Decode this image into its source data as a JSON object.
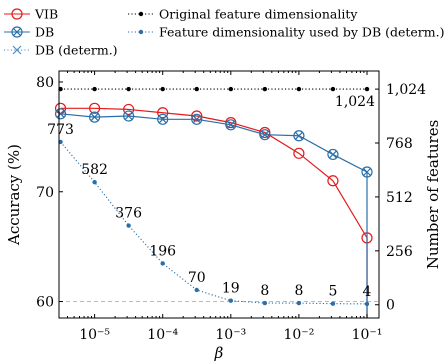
{
  "chart_data": {
    "type": "line",
    "xlabel": "β",
    "ylabel_left": "Accuracy (%)",
    "ylabel_right": "Number of features",
    "xscale": "log",
    "xlim": [
      3e-06,
      0.15
    ],
    "ylim_left": [
      58.5,
      81
    ],
    "ylim_right": [
      -63,
      1110
    ],
    "x_ticks": [
      {
        "v": 1e-05,
        "label": "10⁻⁵"
      },
      {
        "v": 0.0001,
        "label": "10⁻⁴"
      },
      {
        "v": 0.001,
        "label": "10⁻³"
      },
      {
        "v": 0.01,
        "label": "10⁻²"
      },
      {
        "v": 0.1,
        "label": "10⁻¹"
      }
    ],
    "y_ticks_left": [
      60,
      70,
      80
    ],
    "y_ticks_right": [
      {
        "v": 0,
        "label": "0"
      },
      {
        "v": 256,
        "label": "256"
      },
      {
        "v": 512,
        "label": "512"
      },
      {
        "v": 768,
        "label": "768"
      },
      {
        "v": 1024,
        "label": "1,024"
      }
    ],
    "legend": {
      "placement": "top",
      "entries": [
        {
          "name": "VIB",
          "marker": "circle",
          "color": "#e41a1c"
        },
        {
          "name": "DB",
          "marker": "circle-x",
          "color": "#2b6fa8"
        },
        {
          "name": "DB (determ.)",
          "marker": "x",
          "color": "#4a90c8"
        },
        {
          "name": "Original feature dimensionality",
          "marker": "dot",
          "color": "#000000"
        },
        {
          "name": "Feature dimensionality used by DB (determ.)",
          "marker": "dot",
          "color": "#2b6fa8"
        }
      ]
    },
    "series": [
      {
        "name": "VIB",
        "axis": "left",
        "color": "#e41a1c",
        "marker": "circle",
        "x": [
          3.16e-06,
          1e-05,
          3.16e-05,
          0.0001,
          0.000316,
          0.001,
          0.00316,
          0.01,
          0.0316,
          0.1
        ],
        "y": [
          77.6,
          77.6,
          77.5,
          77.2,
          76.9,
          76.3,
          75.4,
          73.5,
          71.0,
          65.8
        ],
        "drop_to": 58.5
      },
      {
        "name": "DB",
        "axis": "left",
        "color": "#2b6fa8",
        "marker": "circle-x",
        "x": [
          3.16e-06,
          1e-05,
          3.16e-05,
          0.0001,
          0.000316,
          0.001,
          0.00316,
          0.01,
          0.0316,
          0.1
        ],
        "y": [
          77.1,
          76.8,
          76.9,
          76.6,
          76.6,
          76.1,
          75.2,
          75.1,
          73.4,
          71.8
        ],
        "drop_to": 58.5
      },
      {
        "name": "Original feature dimensionality",
        "axis": "right",
        "color": "#000000",
        "marker": "dot",
        "style": "dotted",
        "x": [
          3.16e-06,
          1e-05,
          3.16e-05,
          0.0001,
          0.000316,
          0.001,
          0.00316,
          0.01,
          0.0316,
          0.1
        ],
        "y": [
          1024,
          1024,
          1024,
          1024,
          1024,
          1024,
          1024,
          1024,
          1024,
          1024
        ]
      },
      {
        "name": "Feature dimensionality used by DB (determ.)",
        "axis": "right",
        "color": "#2b6fa8",
        "marker": "dot",
        "style": "dotted",
        "x": [
          3.16e-06,
          1e-05,
          3.16e-05,
          0.0001,
          0.000316,
          0.001,
          0.00316,
          0.01,
          0.0316,
          0.1
        ],
        "y": [
          773,
          582,
          376,
          196,
          70,
          19,
          8,
          8,
          5,
          4
        ]
      }
    ],
    "annotations": [
      {
        "text": "1,024",
        "x": 0.1,
        "y": 1024,
        "axis": "right"
      },
      {
        "text": "773",
        "x": 3.16e-06,
        "y": 773,
        "axis": "right"
      },
      {
        "text": "582",
        "x": 1e-05,
        "y": 582,
        "axis": "right"
      },
      {
        "text": "376",
        "x": 3.16e-05,
        "y": 376,
        "axis": "right"
      },
      {
        "text": "196",
        "x": 0.0001,
        "y": 196,
        "axis": "right"
      },
      {
        "text": "70",
        "x": 0.000316,
        "y": 70,
        "axis": "right"
      },
      {
        "text": "19",
        "x": 0.001,
        "y": 19,
        "axis": "right"
      },
      {
        "text": "8",
        "x": 0.00316,
        "y": 8,
        "axis": "right"
      },
      {
        "text": "8",
        "x": 0.01,
        "y": 8,
        "axis": "right"
      },
      {
        "text": "5",
        "x": 0.0316,
        "y": 5,
        "axis": "right"
      },
      {
        "text": "4",
        "x": 0.1,
        "y": 4,
        "axis": "right"
      }
    ],
    "reference_line": {
      "axis": "left",
      "y": 60,
      "color": "#bbbbbb",
      "style": "dashed"
    }
  }
}
